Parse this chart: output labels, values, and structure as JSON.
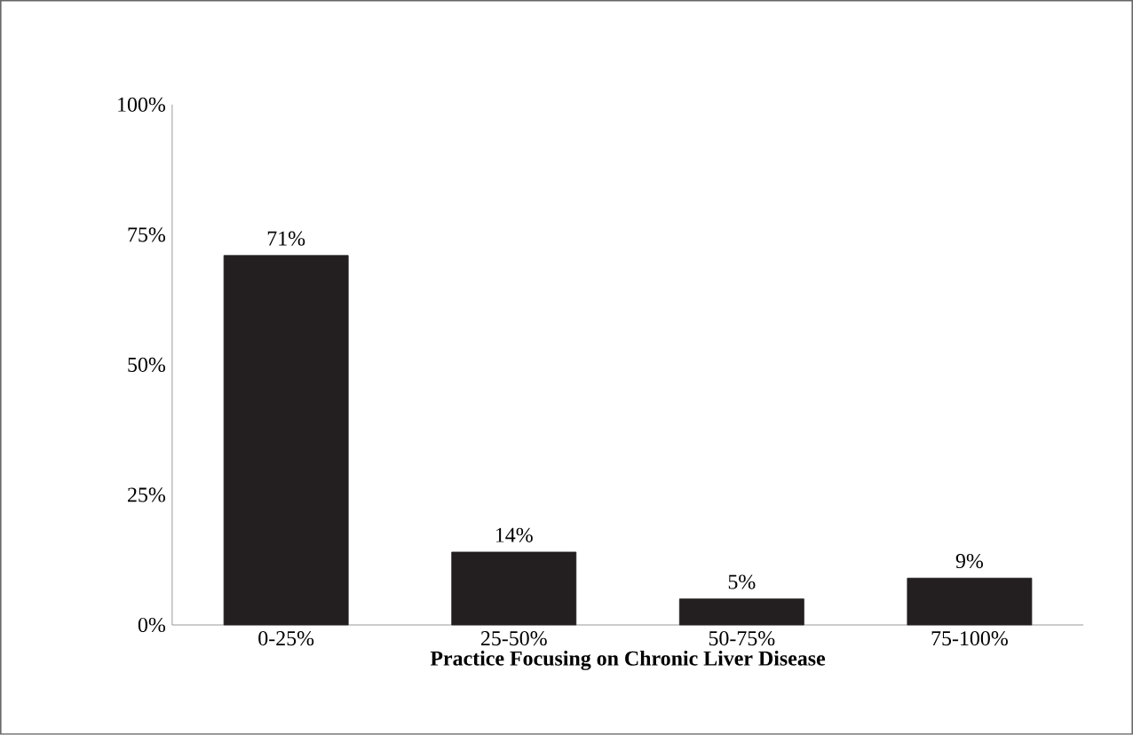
{
  "chart_data": {
    "type": "bar",
    "xlabel": "Practice Focusing on Chronic Liver Disease",
    "categories": [
      "0-25%",
      "25-50%",
      "50-75%",
      "75-100%"
    ],
    "values": [
      71,
      14,
      5,
      9
    ],
    "color": "#231f20",
    "value_labels": [
      "71%",
      "14%",
      "5%",
      "9%"
    ],
    "ylim": [
      0,
      100
    ],
    "yticks": [
      {
        "value": 0,
        "label": "0%"
      },
      {
        "value": 25,
        "label": "25%"
      },
      {
        "value": 50,
        "label": "50%"
      },
      {
        "value": 75,
        "label": "75%"
      },
      {
        "value": 100,
        "label": "100%"
      }
    ],
    "grid": false
  }
}
